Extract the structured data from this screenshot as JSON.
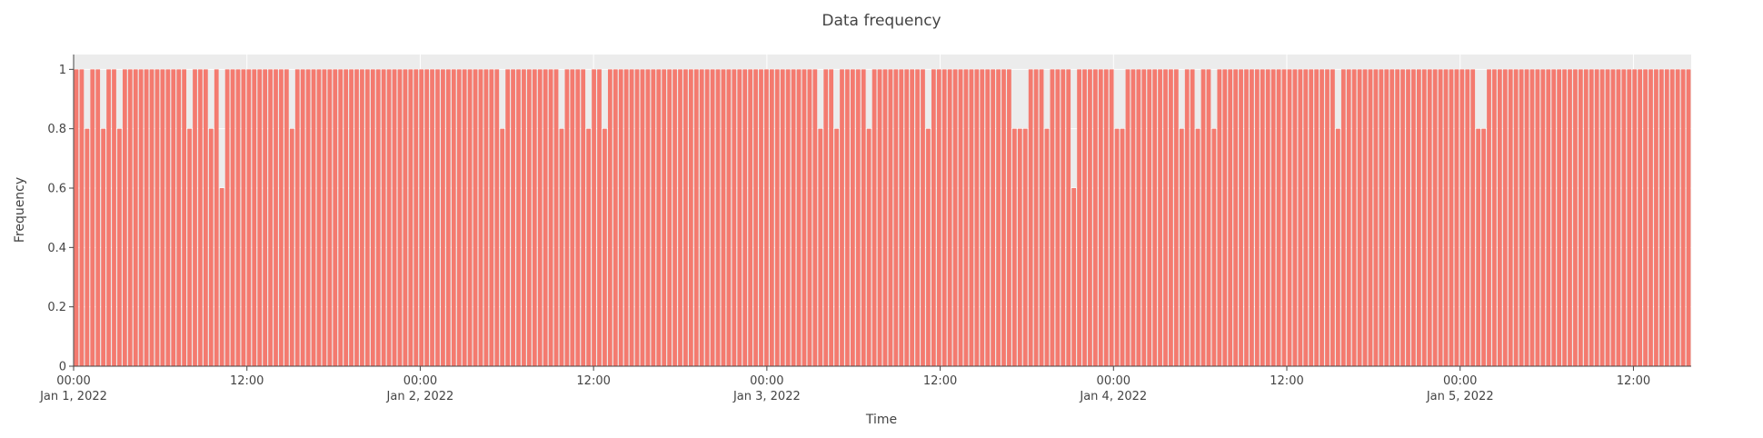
{
  "chart_data": {
    "type": "bar",
    "title": "Data frequency",
    "xlabel": "Time",
    "ylabel": "Frequency",
    "ylim": [
      0,
      1.05
    ],
    "yticks": [
      0,
      0.2,
      0.4,
      0.6,
      0.8,
      1
    ],
    "ytick_labels": [
      "0",
      "0.2",
      "0.4",
      "0.6",
      "0.8",
      "1"
    ],
    "x_start": "2022-01-01T00:00",
    "x_end": "2022-01-05T15:45",
    "bin_minutes": 15,
    "xticks": [
      {
        "time": "2022-01-01T00:00",
        "label": "00:00",
        "sublabel": "Jan 1, 2022"
      },
      {
        "time": "2022-01-01T12:00",
        "label": "12:00",
        "sublabel": ""
      },
      {
        "time": "2022-01-02T00:00",
        "label": "00:00",
        "sublabel": "Jan 2, 2022"
      },
      {
        "time": "2022-01-02T12:00",
        "label": "12:00",
        "sublabel": ""
      },
      {
        "time": "2022-01-03T00:00",
        "label": "00:00",
        "sublabel": "Jan 3, 2022"
      },
      {
        "time": "2022-01-03T12:00",
        "label": "12:00",
        "sublabel": ""
      },
      {
        "time": "2022-01-04T00:00",
        "label": "00:00",
        "sublabel": "Jan 4, 2022"
      },
      {
        "time": "2022-01-04T12:00",
        "label": "12:00",
        "sublabel": ""
      },
      {
        "time": "2022-01-05T00:00",
        "label": "00:00",
        "sublabel": "Jan 5, 2022"
      },
      {
        "time": "2022-01-05T12:00",
        "label": "12:00",
        "sublabel": ""
      }
    ],
    "values": [
      1,
      1,
      0.8,
      1,
      1,
      0.8,
      1,
      1,
      0.8,
      1,
      1,
      1,
      1,
      1,
      1,
      1,
      1,
      1,
      1,
      1,
      1,
      0.8,
      1,
      1,
      1,
      0.8,
      1,
      0.6,
      1,
      1,
      1,
      1,
      1,
      1,
      1,
      1,
      1,
      1,
      1,
      1,
      0.8,
      1,
      1,
      1,
      1,
      1,
      1,
      1,
      1,
      1,
      1,
      1,
      1,
      1,
      1,
      1,
      1,
      1,
      1,
      1,
      1,
      1,
      1,
      1,
      1,
      1,
      1,
      1,
      1,
      1,
      1,
      1,
      1,
      1,
      1,
      1,
      1,
      1,
      1,
      0.8,
      1,
      1,
      1,
      1,
      1,
      1,
      1,
      1,
      1,
      1,
      0.8,
      1,
      1,
      1,
      1,
      0.8,
      1,
      1,
      0.8,
      1,
      1,
      1,
      1,
      1,
      1,
      1,
      1,
      1,
      1,
      1,
      1,
      1,
      1,
      1,
      1,
      1,
      1,
      1,
      1,
      1,
      1,
      1,
      1,
      1,
      1,
      1,
      1,
      1,
      1,
      1,
      1,
      1,
      1,
      1,
      1,
      1,
      1,
      1,
      0.8,
      1,
      1,
      0.8,
      1,
      1,
      1,
      1,
      1,
      0.8,
      1,
      1,
      1,
      1,
      1,
      1,
      1,
      1,
      1,
      1,
      0.8,
      1,
      1,
      1,
      1,
      1,
      1,
      1,
      1,
      1,
      1,
      1,
      1,
      1,
      1,
      1,
      0.8,
      0.8,
      0.8,
      1,
      1,
      1,
      0.8,
      1,
      1,
      1,
      1,
      0.6,
      1,
      1,
      1,
      1,
      1,
      1,
      1,
      0.8,
      0.8,
      1,
      1,
      1,
      1,
      1,
      1,
      1,
      1,
      1,
      1,
      0.8,
      1,
      1,
      0.8,
      1,
      1,
      0.8,
      1,
      1,
      1,
      1,
      1,
      1,
      1,
      1,
      1,
      1,
      1,
      1,
      1,
      1,
      1,
      1,
      1,
      1,
      1,
      1,
      1,
      1,
      0.8,
      1,
      1,
      1,
      1,
      1,
      1,
      1,
      1,
      1,
      1,
      1,
      1,
      1,
      1,
      1,
      1,
      1,
      1,
      1,
      1,
      1,
      1,
      1,
      1,
      1,
      0.8,
      0.8,
      1,
      1,
      1,
      1,
      1,
      1,
      1,
      1,
      1,
      1,
      1,
      1,
      1,
      1,
      1,
      1,
      1,
      1,
      1,
      1,
      1,
      1,
      1,
      1,
      1,
      1,
      1,
      1,
      1,
      1,
      1,
      1,
      1,
      1,
      1,
      1,
      1,
      1
    ],
    "grid": true,
    "colors": {
      "bar": "#f47a6f",
      "plot_background": "#ececec",
      "grid": "#ffffff",
      "text": "#444444"
    }
  }
}
